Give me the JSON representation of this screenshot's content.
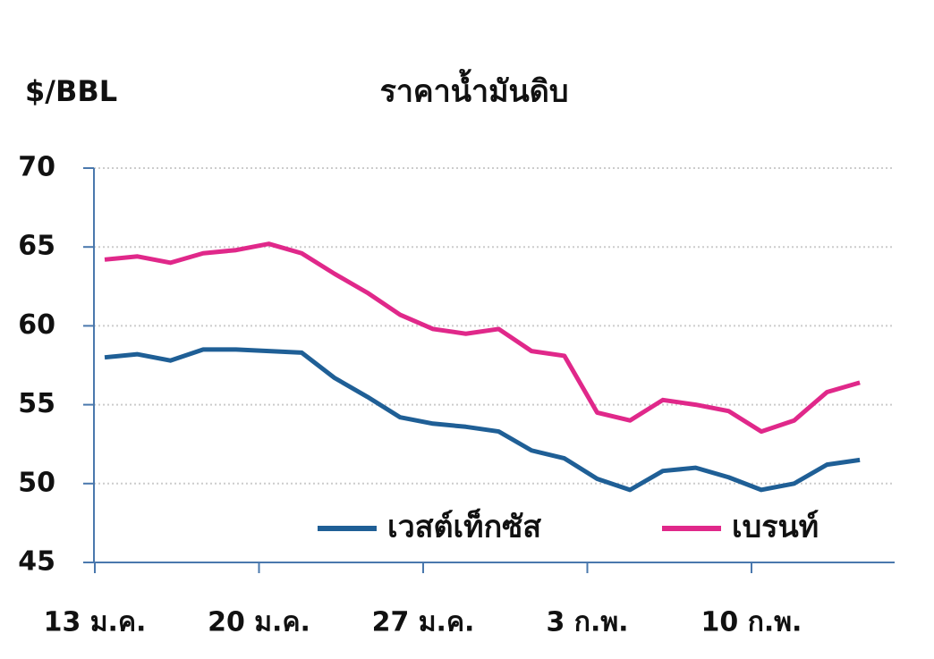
{
  "chart_data": {
    "type": "line",
    "title": "ราคาน้ำมันดิบ",
    "y_label": "$/BBL",
    "categories": [
      "13 ม.ค.",
      null,
      null,
      null,
      null,
      "20 ม.ค.",
      null,
      null,
      null,
      null,
      "27 ม.ค.",
      null,
      null,
      null,
      null,
      "3 ก.พ.",
      null,
      null,
      null,
      null,
      "10 ก.พ.",
      null,
      null,
      null
    ],
    "series": [
      {
        "name": "เวสต์เท็กซัส",
        "color": "#1f5f96",
        "values": [
          58.0,
          58.2,
          57.8,
          58.5,
          58.5,
          58.4,
          58.3,
          56.7,
          55.5,
          54.2,
          53.8,
          53.6,
          53.3,
          52.1,
          51.6,
          50.3,
          49.6,
          50.8,
          51.0,
          50.4,
          49.6,
          50.0,
          51.2,
          51.5
        ]
      },
      {
        "name": "เบรนท์",
        "color": "#e0288a",
        "values": [
          64.2,
          64.4,
          64.0,
          64.6,
          64.8,
          65.2,
          64.6,
          63.3,
          62.1,
          60.7,
          59.8,
          59.5,
          59.8,
          58.4,
          58.1,
          54.5,
          54.0,
          55.3,
          55.0,
          54.6,
          53.3,
          54.0,
          55.8,
          56.4
        ]
      }
    ],
    "ylim": [
      45,
      70
    ],
    "yticks": [
      45,
      50,
      55,
      60,
      65,
      70
    ],
    "grid": true
  }
}
